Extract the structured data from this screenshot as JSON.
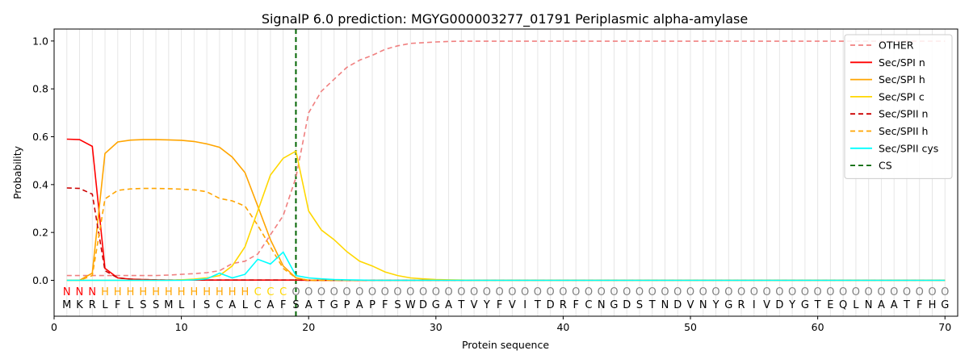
{
  "chart_data": {
    "type": "line",
    "title": "SignalP 6.0 prediction: MGYG000003277_01791 Periplasmic alpha-amylase",
    "xlabel": "Protein sequence",
    "ylabel": "Probability",
    "xlim": [
      0,
      71
    ],
    "ylim": [
      -0.15,
      1.05
    ],
    "xticks": [
      0,
      10,
      20,
      30,
      40,
      50,
      60,
      70
    ],
    "yticks": [
      0.0,
      0.2,
      0.4,
      0.6,
      0.8,
      1.0
    ],
    "xtick_labels": [
      "0",
      "10",
      "20",
      "30",
      "40",
      "50",
      "60",
      "70"
    ],
    "ytick_labels": [
      "0.0",
      "0.2",
      "0.4",
      "0.6",
      "0.8",
      "1.0"
    ],
    "grid": "vertical lines at every residue",
    "legend_position": "top-right",
    "cleavage_site": 19,
    "sequence": [
      "M",
      "K",
      "R",
      "L",
      "F",
      "L",
      "S",
      "S",
      "M",
      "L",
      "I",
      "S",
      "C",
      "A",
      "L",
      "C",
      "A",
      "F",
      "S",
      "A",
      "T",
      "G",
      "P",
      "A",
      "P",
      "F",
      "S",
      "W",
      "D",
      "G",
      "A",
      "T",
      "V",
      "Y",
      "F",
      "V",
      "I",
      "T",
      "D",
      "R",
      "F",
      "C",
      "N",
      "G",
      "D",
      "S",
      "T",
      "N",
      "D",
      "V",
      "N",
      "Y",
      "G",
      "R",
      "I",
      "V",
      "D",
      "Y",
      "G",
      "T",
      "E",
      "Q",
      "L",
      "N",
      "A",
      "A",
      "T",
      "F",
      "H",
      "G"
    ],
    "labels": [
      "N",
      "N",
      "N",
      "H",
      "H",
      "H",
      "H",
      "H",
      "H",
      "H",
      "H",
      "H",
      "H",
      "H",
      "H",
      "C",
      "C",
      "C",
      "O",
      "O",
      "O",
      "O",
      "O",
      "O",
      "O",
      "O",
      "O",
      "O",
      "O",
      "O",
      "O",
      "O",
      "O",
      "O",
      "O",
      "O",
      "O",
      "O",
      "O",
      "O",
      "O",
      "O",
      "O",
      "O",
      "O",
      "O",
      "O",
      "O",
      "O",
      "O",
      "O",
      "O",
      "O",
      "O",
      "O",
      "O",
      "O",
      "O",
      "O",
      "O",
      "O",
      "O",
      "O",
      "O",
      "O",
      "O",
      "O",
      "O",
      "O",
      "O"
    ],
    "label_colors": {
      "N": "#ff0000",
      "H": "#ffa500",
      "C": "#ffd700",
      "O": "#808080"
    },
    "series": [
      {
        "name": "OTHER",
        "color": "#f08080",
        "dash": "dashed",
        "values": [
          0.02,
          0.02,
          0.02,
          0.02,
          0.02,
          0.02,
          0.02,
          0.02,
          0.022,
          0.025,
          0.028,
          0.032,
          0.04,
          0.07,
          0.08,
          0.11,
          0.19,
          0.27,
          0.43,
          0.7,
          0.79,
          0.84,
          0.89,
          0.92,
          0.94,
          0.965,
          0.98,
          0.99,
          0.993,
          0.996,
          0.998,
          0.999,
          0.999,
          0.999,
          0.999,
          0.999,
          0.999,
          0.999,
          0.999,
          0.999,
          0.999,
          0.999,
          0.999,
          0.999,
          0.999,
          0.999,
          0.999,
          0.999,
          0.999,
          0.999,
          0.999,
          0.999,
          0.999,
          0.999,
          0.999,
          0.999,
          0.999,
          0.999,
          0.999,
          0.999,
          0.999,
          0.999,
          0.999,
          0.999,
          0.999,
          0.999,
          0.999,
          0.999,
          0.999,
          0.999
        ]
      },
      {
        "name": "Sec/SPI n",
        "color": "#ff0000",
        "dash": "solid",
        "values": [
          0.59,
          0.588,
          0.56,
          0.05,
          0.01,
          0.005,
          0.003,
          0.002,
          0.001,
          0.001,
          0.001,
          0.001,
          0.001,
          0.001,
          0.001,
          0.001,
          0.001,
          0.001,
          0.001,
          0.0,
          0.0,
          0.0,
          0.0,
          0.0,
          0.0,
          0.0,
          0.0,
          0.0,
          0.0,
          0.0,
          0.0,
          0.0,
          0.0,
          0.0,
          0.0,
          0.0,
          0.0,
          0.0,
          0.0,
          0.0,
          0.0,
          0.0,
          0.0,
          0.0,
          0.0,
          0.0,
          0.0,
          0.0,
          0.0,
          0.0,
          0.0,
          0.0,
          0.0,
          0.0,
          0.0,
          0.0,
          0.0,
          0.0,
          0.0,
          0.0,
          0.0,
          0.0,
          0.0,
          0.0,
          0.0,
          0.0,
          0.0,
          0.0,
          0.0,
          0.0
        ]
      },
      {
        "name": "Sec/SPI h",
        "color": "#ffa500",
        "dash": "solid",
        "values": [
          0.0,
          0.0,
          0.03,
          0.53,
          0.578,
          0.586,
          0.588,
          0.588,
          0.587,
          0.585,
          0.58,
          0.57,
          0.556,
          0.515,
          0.45,
          0.31,
          0.17,
          0.06,
          0.01,
          0.0,
          0.0,
          0.0,
          0.0,
          0.0,
          0.0,
          0.0,
          0.0,
          0.0,
          0.0,
          0.0,
          0.0,
          0.0,
          0.0,
          0.0,
          0.0,
          0.0,
          0.0,
          0.0,
          0.0,
          0.0,
          0.0,
          0.0,
          0.0,
          0.0,
          0.0,
          0.0,
          0.0,
          0.0,
          0.0,
          0.0,
          0.0,
          0.0,
          0.0,
          0.0,
          0.0,
          0.0,
          0.0,
          0.0,
          0.0,
          0.0,
          0.0,
          0.0,
          0.0,
          0.0,
          0.0,
          0.0,
          0.0,
          0.0,
          0.0,
          0.0
        ]
      },
      {
        "name": "Sec/SPI c",
        "color": "#ffd700",
        "dash": "solid",
        "values": [
          0.0,
          0.0,
          0.0,
          0.0,
          0.0,
          0.0,
          0.0,
          0.0,
          0.0,
          0.002,
          0.005,
          0.01,
          0.02,
          0.06,
          0.14,
          0.29,
          0.44,
          0.51,
          0.54,
          0.29,
          0.21,
          0.17,
          0.12,
          0.08,
          0.06,
          0.035,
          0.02,
          0.01,
          0.006,
          0.003,
          0.002,
          0.001,
          0.0,
          0.0,
          0.0,
          0.0,
          0.0,
          0.0,
          0.0,
          0.0,
          0.0,
          0.0,
          0.0,
          0.0,
          0.0,
          0.0,
          0.0,
          0.0,
          0.0,
          0.0,
          0.0,
          0.0,
          0.0,
          0.0,
          0.0,
          0.0,
          0.0,
          0.0,
          0.0,
          0.0,
          0.0,
          0.0,
          0.0,
          0.0,
          0.0,
          0.0,
          0.0,
          0.0,
          0.0,
          0.0
        ]
      },
      {
        "name": "Sec/SPII n",
        "color": "#cc0000",
        "dash": "dashed",
        "values": [
          0.386,
          0.384,
          0.36,
          0.04,
          0.01,
          0.005,
          0.003,
          0.002,
          0.001,
          0.001,
          0.001,
          0.001,
          0.001,
          0.001,
          0.001,
          0.001,
          0.001,
          0.001,
          0.001,
          0.0,
          0.0,
          0.0,
          0.0,
          0.0,
          0.0,
          0.0,
          0.0,
          0.0,
          0.0,
          0.0,
          0.0,
          0.0,
          0.0,
          0.0,
          0.0,
          0.0,
          0.0,
          0.0,
          0.0,
          0.0,
          0.0,
          0.0,
          0.0,
          0.0,
          0.0,
          0.0,
          0.0,
          0.0,
          0.0,
          0.0,
          0.0,
          0.0,
          0.0,
          0.0,
          0.0,
          0.0,
          0.0,
          0.0,
          0.0,
          0.0,
          0.0,
          0.0,
          0.0,
          0.0,
          0.0,
          0.0,
          0.0,
          0.0,
          0.0,
          0.0
        ]
      },
      {
        "name": "Sec/SPII h",
        "color": "#ffa500",
        "dash": "dashed",
        "values": [
          0.0,
          0.0,
          0.02,
          0.34,
          0.376,
          0.382,
          0.384,
          0.384,
          0.383,
          0.381,
          0.378,
          0.37,
          0.342,
          0.332,
          0.31,
          0.23,
          0.14,
          0.05,
          0.01,
          0.0,
          0.0,
          0.0,
          0.0,
          0.0,
          0.0,
          0.0,
          0.0,
          0.0,
          0.0,
          0.0,
          0.0,
          0.0,
          0.0,
          0.0,
          0.0,
          0.0,
          0.0,
          0.0,
          0.0,
          0.0,
          0.0,
          0.0,
          0.0,
          0.0,
          0.0,
          0.0,
          0.0,
          0.0,
          0.0,
          0.0,
          0.0,
          0.0,
          0.0,
          0.0,
          0.0,
          0.0,
          0.0,
          0.0,
          0.0,
          0.0,
          0.0,
          0.0,
          0.0,
          0.0,
          0.0,
          0.0,
          0.0,
          0.0,
          0.0,
          0.0
        ]
      },
      {
        "name": "Sec/SPII cys",
        "color": "#00ffff",
        "dash": "solid",
        "values": [
          0.0,
          0.0,
          0.0,
          0.0,
          0.0,
          0.0,
          0.0,
          0.0,
          0.0,
          0.0,
          0.002,
          0.006,
          0.03,
          0.01,
          0.025,
          0.088,
          0.068,
          0.118,
          0.02,
          0.01,
          0.006,
          0.003,
          0.002,
          0.001,
          0.0,
          0.0,
          0.0,
          0.0,
          0.0,
          0.0,
          0.0,
          0.0,
          0.0,
          0.0,
          0.0,
          0.0,
          0.0,
          0.0,
          0.0,
          0.0,
          0.0,
          0.0,
          0.0,
          0.0,
          0.0,
          0.0,
          0.0,
          0.0,
          0.0,
          0.0,
          0.0,
          0.0,
          0.0,
          0.0,
          0.0,
          0.0,
          0.0,
          0.0,
          0.0,
          0.0,
          0.0,
          0.0,
          0.0,
          0.0,
          0.0,
          0.0,
          0.0,
          0.0,
          0.0,
          0.0
        ]
      }
    ],
    "cs_legend": {
      "name": "CS",
      "color": "#006400",
      "dash": "dashed"
    }
  }
}
